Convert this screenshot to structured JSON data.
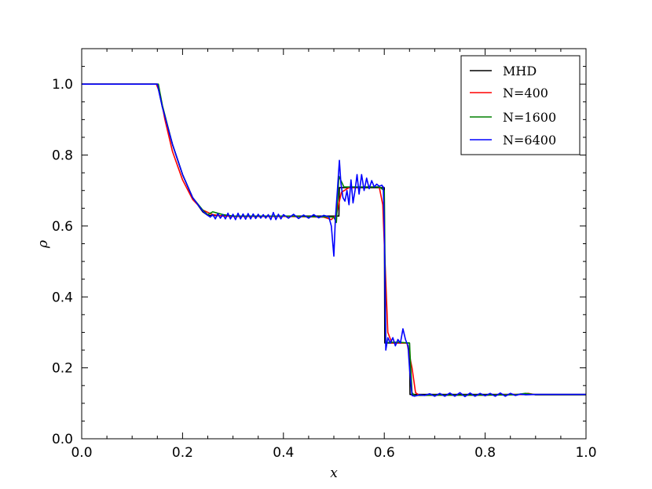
{
  "chart_data": {
    "type": "line",
    "title": "",
    "xlabel": "x",
    "ylabel": "ρ",
    "xlim": [
      0.0,
      1.0
    ],
    "ylim": [
      0.0,
      1.1
    ],
    "xticks": [
      "0.0",
      "0.2",
      "0.4",
      "0.6",
      "0.8",
      "1.0"
    ],
    "yticks": [
      "0.0",
      "0.2",
      "0.4",
      "0.6",
      "0.8",
      "1.0"
    ],
    "grid": false,
    "legend_position": "top-right",
    "series": [
      {
        "name": "MHD",
        "color": "#000000",
        "x": [
          0.0,
          0.15,
          0.16,
          0.18,
          0.2,
          0.22,
          0.24,
          0.25,
          0.3,
          0.4,
          0.5,
          0.51,
          0.511,
          0.55,
          0.6,
          0.601,
          0.65,
          0.651,
          0.7,
          0.8,
          0.9,
          1.0
        ],
        "y": [
          1.0,
          1.0,
          0.935,
          0.83,
          0.745,
          0.68,
          0.64,
          0.63,
          0.628,
          0.628,
          0.628,
          0.628,
          0.708,
          0.708,
          0.708,
          0.27,
          0.27,
          0.125,
          0.125,
          0.125,
          0.125,
          0.125
        ]
      },
      {
        "name": "N=400",
        "color": "#ff0000",
        "x": [
          0.0,
          0.148,
          0.155,
          0.165,
          0.18,
          0.2,
          0.22,
          0.24,
          0.26,
          0.28,
          0.3,
          0.4,
          0.48,
          0.495,
          0.505,
          0.515,
          0.53,
          0.56,
          0.59,
          0.597,
          0.602,
          0.607,
          0.615,
          0.63,
          0.645,
          0.655,
          0.662,
          0.67,
          0.7,
          0.8,
          0.87,
          0.885,
          0.9,
          1.0
        ],
        "y": [
          1.0,
          1.0,
          0.975,
          0.9,
          0.81,
          0.73,
          0.675,
          0.645,
          0.632,
          0.628,
          0.627,
          0.627,
          0.625,
          0.618,
          0.632,
          0.695,
          0.708,
          0.71,
          0.71,
          0.66,
          0.48,
          0.3,
          0.27,
          0.27,
          0.27,
          0.2,
          0.13,
          0.122,
          0.123,
          0.123,
          0.125,
          0.128,
          0.124,
          0.124
        ]
      },
      {
        "name": "N=1600",
        "color": "#008000",
        "x": [
          0.0,
          0.152,
          0.16,
          0.18,
          0.2,
          0.22,
          0.24,
          0.25,
          0.26,
          0.28,
          0.3,
          0.4,
          0.5,
          0.505,
          0.51,
          0.52,
          0.55,
          0.59,
          0.6,
          0.603,
          0.61,
          0.63,
          0.65,
          0.655,
          0.66,
          0.7,
          0.8,
          0.86,
          0.88,
          0.9,
          1.0
        ],
        "y": [
          1.0,
          1.0,
          0.94,
          0.83,
          0.745,
          0.68,
          0.645,
          0.632,
          0.64,
          0.632,
          0.628,
          0.628,
          0.625,
          0.61,
          0.74,
          0.71,
          0.71,
          0.71,
          0.7,
          0.27,
          0.272,
          0.272,
          0.27,
          0.13,
          0.122,
          0.123,
          0.123,
          0.124,
          0.128,
          0.124,
          0.124
        ]
      },
      {
        "name": "N=6400",
        "color": "#0000ff",
        "x": [
          0.0,
          0.15,
          0.16,
          0.18,
          0.2,
          0.22,
          0.24,
          0.25,
          0.255,
          0.26,
          0.265,
          0.27,
          0.275,
          0.28,
          0.285,
          0.29,
          0.295,
          0.3,
          0.305,
          0.31,
          0.315,
          0.32,
          0.325,
          0.33,
          0.335,
          0.34,
          0.345,
          0.35,
          0.355,
          0.36,
          0.365,
          0.37,
          0.375,
          0.38,
          0.385,
          0.39,
          0.395,
          0.4,
          0.41,
          0.42,
          0.43,
          0.44,
          0.45,
          0.46,
          0.47,
          0.48,
          0.49,
          0.495,
          0.5,
          0.503,
          0.507,
          0.511,
          0.514,
          0.518,
          0.522,
          0.526,
          0.53,
          0.534,
          0.538,
          0.542,
          0.546,
          0.55,
          0.555,
          0.56,
          0.565,
          0.57,
          0.575,
          0.58,
          0.585,
          0.59,
          0.595,
          0.598,
          0.6,
          0.603,
          0.607,
          0.612,
          0.617,
          0.622,
          0.627,
          0.632,
          0.637,
          0.642,
          0.647,
          0.65,
          0.655,
          0.66,
          0.67,
          0.68,
          0.69,
          0.7,
          0.71,
          0.72,
          0.73,
          0.74,
          0.75,
          0.76,
          0.77,
          0.78,
          0.79,
          0.8,
          0.81,
          0.82,
          0.83,
          0.84,
          0.85,
          0.86,
          0.87,
          0.88,
          0.9,
          1.0
        ],
        "y": [
          1.0,
          1.0,
          0.935,
          0.83,
          0.745,
          0.68,
          0.642,
          0.63,
          0.625,
          0.632,
          0.62,
          0.635,
          0.622,
          0.632,
          0.62,
          0.636,
          0.62,
          0.633,
          0.618,
          0.636,
          0.62,
          0.634,
          0.619,
          0.635,
          0.62,
          0.634,
          0.621,
          0.633,
          0.622,
          0.632,
          0.622,
          0.632,
          0.618,
          0.638,
          0.618,
          0.633,
          0.62,
          0.632,
          0.622,
          0.633,
          0.621,
          0.631,
          0.622,
          0.632,
          0.623,
          0.63,
          0.626,
          0.6,
          0.515,
          0.62,
          0.7,
          0.785,
          0.72,
          0.68,
          0.67,
          0.7,
          0.66,
          0.73,
          0.665,
          0.7,
          0.745,
          0.69,
          0.745,
          0.7,
          0.735,
          0.705,
          0.728,
          0.71,
          0.718,
          0.712,
          0.715,
          0.71,
          0.6,
          0.25,
          0.285,
          0.27,
          0.285,
          0.262,
          0.28,
          0.27,
          0.31,
          0.28,
          0.262,
          0.2,
          0.122,
          0.12,
          0.124,
          0.122,
          0.127,
          0.12,
          0.128,
          0.12,
          0.129,
          0.12,
          0.13,
          0.119,
          0.129,
          0.12,
          0.128,
          0.121,
          0.128,
          0.12,
          0.129,
          0.12,
          0.128,
          0.122,
          0.126,
          0.124,
          0.125,
          0.125
        ]
      }
    ]
  }
}
